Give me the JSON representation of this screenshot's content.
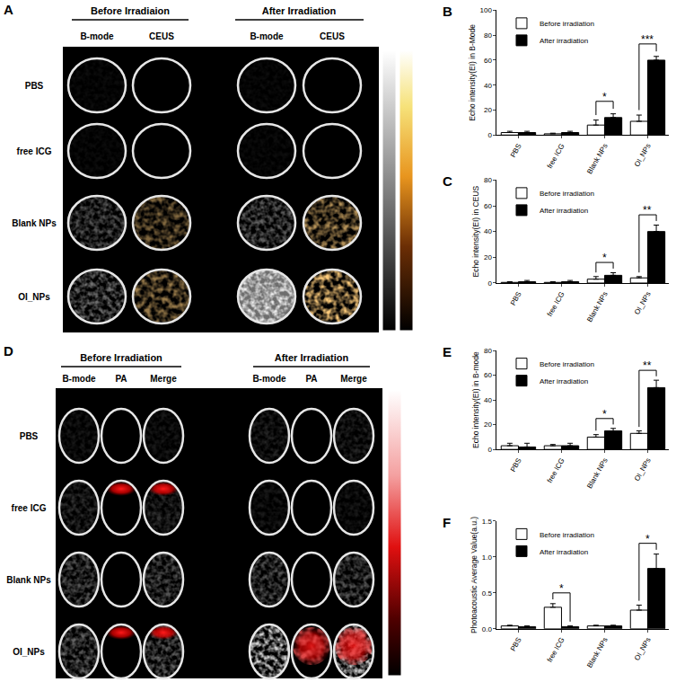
{
  "image_panels": [
    {
      "label": "A",
      "groups": [
        "Before Irradiaion",
        "After Irradiation"
      ],
      "columns": [
        "B-mode",
        "CEUS"
      ],
      "rows": [
        "PBS",
        "free ICG",
        "Blank NPs",
        "OI_NPs"
      ]
    },
    {
      "label": "D",
      "groups": [
        "Before Irradiation",
        "After Irradiation"
      ],
      "columns": [
        "B-mode",
        "PA",
        "Merge"
      ],
      "rows": [
        "PBS",
        "free ICG",
        "Blank NPs",
        "OI_NPs"
      ]
    }
  ],
  "chart_data": [
    {
      "type": "bar",
      "title": "B",
      "ylabel": "Echo intensity(EI) in B-Mode",
      "categories": [
        "PBS",
        "free ICG",
        "Blank NPs",
        "OI_NPs"
      ],
      "ylim": [
        0,
        100
      ],
      "yticks": [
        0,
        20,
        40,
        60,
        80,
        100
      ],
      "grid": false,
      "legend": "top left",
      "series": [
        {
          "name": "Before irradiation",
          "color": "#ffffff",
          "values": [
            2,
            1,
            8,
            11
          ],
          "errors": [
            1,
            0.5,
            4,
            5
          ]
        },
        {
          "name": "After irradiation",
          "color": "#000000",
          "values": [
            2,
            2,
            14,
            60
          ],
          "errors": [
            1,
            1,
            3,
            3
          ]
        }
      ],
      "annotations": [
        {
          "category": "Blank NPs",
          "text": "*"
        },
        {
          "category": "OI_NPs",
          "text": "***"
        }
      ]
    },
    {
      "type": "bar",
      "title": "C",
      "ylabel": "Echo intensity(EI) in CEUS",
      "categories": [
        "PBS",
        "free ICG",
        "Blank NPs",
        "OI_NPs"
      ],
      "ylim": [
        0,
        80
      ],
      "yticks": [
        0,
        20,
        40,
        60,
        80
      ],
      "grid": false,
      "legend": "top left",
      "series": [
        {
          "name": "Before irradiation",
          "color": "#ffffff",
          "values": [
            0.5,
            0.5,
            3,
            4
          ],
          "errors": [
            0.5,
            0.5,
            2,
            1
          ]
        },
        {
          "name": "After irradiation",
          "color": "#000000",
          "values": [
            1,
            1,
            6,
            40
          ],
          "errors": [
            1,
            1,
            2,
            5
          ]
        }
      ],
      "annotations": [
        {
          "category": "Blank NPs",
          "text": "*"
        },
        {
          "category": "OI_NPs",
          "text": "**"
        }
      ]
    },
    {
      "type": "bar",
      "title": "E",
      "ylabel": "Echo intensity(EI) in B-mode",
      "categories": [
        "PBS",
        "free ICG",
        "Blank NPs",
        "OI_NPs"
      ],
      "ylim": [
        0,
        80
      ],
      "yticks": [
        0,
        20,
        40,
        60,
        80
      ],
      "grid": false,
      "legend": "top left",
      "series": [
        {
          "name": "Before irradiation",
          "color": "#ffffff",
          "values": [
            3,
            3,
            10,
            13
          ],
          "errors": [
            2,
            1,
            2,
            2
          ]
        },
        {
          "name": "After irradiation",
          "color": "#000000",
          "values": [
            2,
            3,
            15,
            50
          ],
          "errors": [
            3,
            2,
            2,
            6
          ]
        }
      ],
      "annotations": [
        {
          "category": "Blank NPs",
          "text": "*"
        },
        {
          "category": "OI_NPs",
          "text": "**"
        }
      ]
    },
    {
      "type": "bar",
      "title": "F",
      "ylabel": "Photoacoustic Average Value(a.u.)",
      "categories": [
        "PBS",
        "free ICG",
        "Blank NPs",
        "OI_NPs"
      ],
      "ylim": [
        0,
        1.5
      ],
      "yticks": [
        {
          "value": 0,
          "label": "0.0"
        },
        0.5,
        {
          "value": 1,
          "label": "1.0"
        },
        1.5
      ],
      "grid": false,
      "legend": "top left",
      "series": [
        {
          "name": "Before irradiation",
          "color": "#ffffff",
          "values": [
            0.04,
            0.3,
            0.04,
            0.26
          ],
          "errors": [
            0.01,
            0.05,
            0.01,
            0.07
          ]
        },
        {
          "name": "After irradiation",
          "color": "#000000",
          "values": [
            0.03,
            0.03,
            0.04,
            0.84
          ],
          "errors": [
            0.01,
            0.01,
            0.01,
            0.2
          ]
        }
      ],
      "annotations": [
        {
          "category": "free ICG",
          "text": "*"
        },
        {
          "category": "OI_NPs",
          "text": "*"
        }
      ]
    }
  ]
}
